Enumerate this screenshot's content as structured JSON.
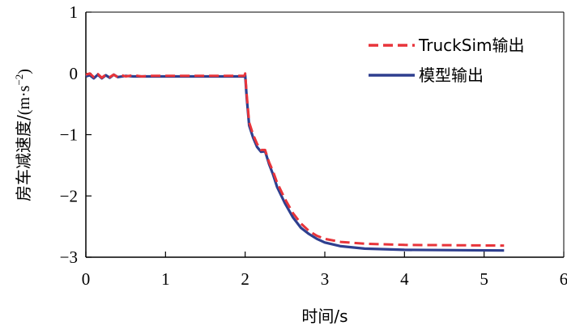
{
  "chart_data": {
    "type": "line",
    "xlabel": "时间/s",
    "ylabel_main": "房车减速度/",
    "ylabel_unit_open": "(m·s",
    "ylabel_unit_sup": "−2",
    "ylabel_unit_close": ")",
    "xlim": [
      0,
      6
    ],
    "ylim": [
      -3,
      1
    ],
    "xticks": [
      0,
      1,
      2,
      3,
      4,
      5,
      6
    ],
    "xtick_labels": [
      "0",
      "1",
      "2",
      "3",
      "4",
      "5",
      "6"
    ],
    "yticks": [
      1,
      0,
      -1,
      -2,
      -3
    ],
    "ytick_labels": [
      "1",
      "0",
      "−1",
      "−2",
      "−3"
    ],
    "grid": false,
    "legend_position": "top-right",
    "series": [
      {
        "name": "TruckSim输出",
        "color": "#e8343a",
        "dash": true,
        "points": [
          [
            0,
            -0.02
          ],
          [
            0.05,
            0
          ],
          [
            0.1,
            -0.06
          ],
          [
            0.15,
            -0.01
          ],
          [
            0.2,
            -0.07
          ],
          [
            0.25,
            -0.02
          ],
          [
            0.3,
            -0.06
          ],
          [
            0.35,
            -0.02
          ],
          [
            0.4,
            -0.06
          ],
          [
            0.45,
            -0.03
          ],
          [
            0.5,
            -0.05
          ],
          [
            0.6,
            -0.03
          ],
          [
            0.7,
            -0.05
          ],
          [
            0.8,
            -0.04
          ],
          [
            1,
            -0.04
          ],
          [
            1.5,
            -0.04
          ],
          [
            1.99,
            -0.04
          ],
          [
            2.0,
            0.0
          ],
          [
            2.02,
            -0.35
          ],
          [
            2.05,
            -0.8
          ],
          [
            2.1,
            -1.0
          ],
          [
            2.15,
            -1.15
          ],
          [
            2.2,
            -1.25
          ],
          [
            2.25,
            -1.25
          ],
          [
            2.3,
            -1.45
          ],
          [
            2.35,
            -1.6
          ],
          [
            2.4,
            -1.78
          ],
          [
            2.5,
            -2.05
          ],
          [
            2.6,
            -2.28
          ],
          [
            2.7,
            -2.45
          ],
          [
            2.8,
            -2.57
          ],
          [
            2.9,
            -2.65
          ],
          [
            3.0,
            -2.7
          ],
          [
            3.2,
            -2.75
          ],
          [
            3.5,
            -2.78
          ],
          [
            4.0,
            -2.8
          ],
          [
            5.25,
            -2.81
          ]
        ]
      },
      {
        "name": "模型输出",
        "color": "#2e3f8f",
        "dash": false,
        "points": [
          [
            0,
            -0.05
          ],
          [
            0.05,
            -0.03
          ],
          [
            0.1,
            -0.08
          ],
          [
            0.15,
            -0.02
          ],
          [
            0.2,
            -0.08
          ],
          [
            0.25,
            -0.03
          ],
          [
            0.3,
            -0.07
          ],
          [
            0.35,
            -0.02
          ],
          [
            0.4,
            -0.06
          ],
          [
            0.5,
            -0.04
          ],
          [
            0.6,
            -0.05
          ],
          [
            1,
            -0.05
          ],
          [
            1.5,
            -0.05
          ],
          [
            1.99,
            -0.05
          ],
          [
            2.0,
            -0.03
          ],
          [
            2.02,
            -0.4
          ],
          [
            2.05,
            -0.85
          ],
          [
            2.1,
            -1.05
          ],
          [
            2.15,
            -1.2
          ],
          [
            2.2,
            -1.28
          ],
          [
            2.25,
            -1.27
          ],
          [
            2.3,
            -1.48
          ],
          [
            2.35,
            -1.65
          ],
          [
            2.4,
            -1.85
          ],
          [
            2.5,
            -2.12
          ],
          [
            2.6,
            -2.35
          ],
          [
            2.7,
            -2.52
          ],
          [
            2.8,
            -2.62
          ],
          [
            2.9,
            -2.7
          ],
          [
            3.0,
            -2.76
          ],
          [
            3.2,
            -2.82
          ],
          [
            3.5,
            -2.86
          ],
          [
            4.0,
            -2.88
          ],
          [
            5.25,
            -2.89
          ]
        ]
      }
    ]
  }
}
